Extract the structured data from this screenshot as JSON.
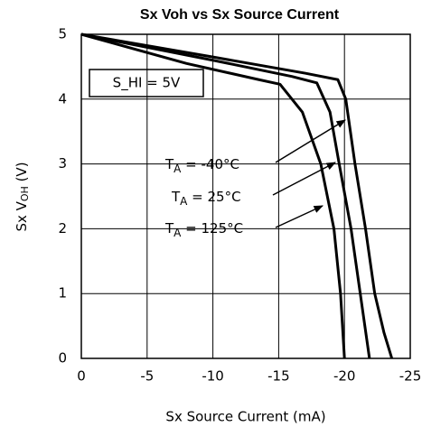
{
  "chart_data": {
    "type": "line",
    "title": "Sx Voh vs Sx Source Current",
    "x_label": "Sx Source Current (mA)",
    "y_label": {
      "main": "Sx V",
      "sub": "OH",
      "rest": " (V)"
    },
    "annotation": "S_HI = 5V",
    "xlim": [
      0,
      -25
    ],
    "xticks": [
      0,
      -5,
      -10,
      -15,
      -20,
      -25
    ],
    "ylim": [
      0,
      5
    ],
    "yticks": [
      0,
      1,
      2,
      3,
      4,
      5
    ],
    "grid": true,
    "series": [
      {
        "label": {
          "main": "T",
          "sub": "A",
          "rest": " = -40°C"
        },
        "color": "#000000",
        "x": [
          0,
          -10,
          -17,
          -19.5,
          -20.1,
          -20.8,
          -21.6,
          -22.3,
          -23,
          -23.6
        ],
        "values": [
          5,
          4.65,
          4.4,
          4.3,
          4,
          3,
          2,
          1,
          0.4,
          0
        ]
      },
      {
        "label": {
          "main": "T",
          "sub": "A",
          "rest": " = 25°C"
        },
        "color": "#000000",
        "x": [
          0,
          -10,
          -16,
          -17.9,
          -18.9,
          -19.6,
          -20.5,
          -21.2,
          -21.9
        ],
        "values": [
          5,
          4.6,
          4.35,
          4.25,
          3.8,
          3,
          2,
          1,
          0
        ]
      },
      {
        "label": {
          "main": "T",
          "sub": "A",
          "rest": " = 125°C"
        },
        "color": "#000000",
        "x": [
          0,
          -8,
          -13.5,
          -15.1,
          -16.8,
          -18.2,
          -19.2,
          -19.7,
          -20
        ],
        "values": [
          5,
          4.55,
          4.3,
          4.23,
          3.8,
          3,
          2,
          1,
          0
        ]
      }
    ]
  }
}
